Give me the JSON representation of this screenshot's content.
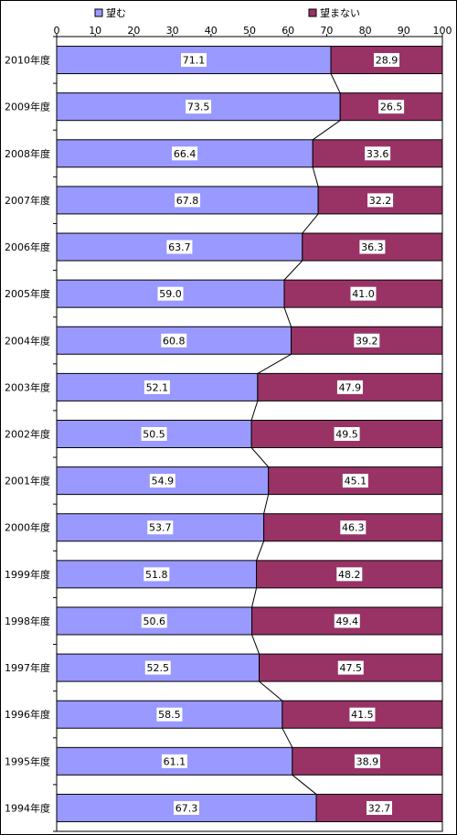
{
  "chart_data": {
    "type": "bar",
    "orientation": "horizontal",
    "stacked": true,
    "title": "",
    "xlabel": "",
    "ylabel": "",
    "xlim": [
      0,
      100
    ],
    "x_ticks": [
      0,
      10,
      20,
      30,
      40,
      50,
      60,
      70,
      80,
      90,
      100
    ],
    "legend_position": "top",
    "grid": false,
    "categories": [
      "2010年度",
      "2009年度",
      "2008年度",
      "2007年度",
      "2006年度",
      "2005年度",
      "2004年度",
      "2003年度",
      "2002年度",
      "2001年度",
      "2000年度",
      "1999年度",
      "1998年度",
      "1997年度",
      "1996年度",
      "1995年度",
      "1994年度"
    ],
    "series": [
      {
        "name": "望む",
        "color": "#9999ff",
        "values": [
          71.1,
          73.5,
          66.4,
          67.8,
          63.7,
          59.0,
          60.8,
          52.1,
          50.5,
          54.9,
          53.7,
          51.8,
          50.6,
          52.5,
          58.5,
          61.1,
          67.3
        ],
        "labels": [
          "71.1",
          "73.5",
          "66.4",
          "67.8",
          "63.7",
          "59.0",
          "60.8",
          "52.1",
          "50.5",
          "54.9",
          "53.7",
          "51.8",
          "50.6",
          "52.5",
          "58.5",
          "61.1",
          "67.3"
        ]
      },
      {
        "name": "望まない",
        "color": "#993366",
        "values": [
          28.9,
          26.5,
          33.6,
          32.2,
          36.3,
          41.0,
          39.2,
          47.9,
          49.5,
          45.1,
          46.3,
          48.2,
          49.4,
          47.5,
          41.5,
          38.9,
          32.7
        ],
        "labels": [
          "28.9",
          "26.5",
          "33.6",
          "32.2",
          "36.3",
          "41.0",
          "39.2",
          "47.9",
          "49.5",
          "45.1",
          "46.3",
          "48.2",
          "49.4",
          "47.5",
          "41.5",
          "38.9",
          "32.7"
        ]
      }
    ],
    "series_lines": true
  }
}
